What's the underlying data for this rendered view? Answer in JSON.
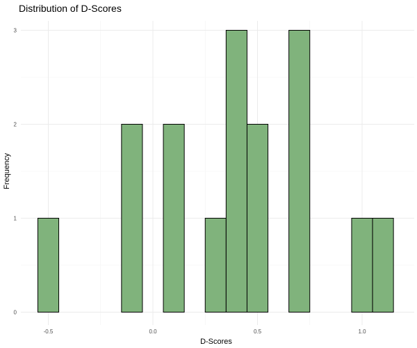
{
  "chart_data": {
    "type": "histogram",
    "title": "Distribution of D-Scores",
    "xlabel": "D-Scores",
    "ylabel": "Frequency",
    "xlim": [
      -0.6,
      1.2
    ],
    "ylim": [
      0,
      3
    ],
    "x_ticks": [
      -0.5,
      0.0,
      0.5,
      1.0
    ],
    "x_tick_labels": [
      "-0.5",
      "0.0",
      "0.5",
      "1.0"
    ],
    "y_ticks": [
      0,
      1,
      2,
      3
    ],
    "y_tick_labels": [
      "0",
      "1",
      "2",
      "3"
    ],
    "bin_width": 0.1,
    "bins": [
      {
        "center": -0.5,
        "count": 1
      },
      {
        "center": -0.4,
        "count": 0
      },
      {
        "center": -0.3,
        "count": 0
      },
      {
        "center": -0.2,
        "count": 0
      },
      {
        "center": -0.1,
        "count": 2
      },
      {
        "center": 0.0,
        "count": 0
      },
      {
        "center": 0.1,
        "count": 2
      },
      {
        "center": 0.2,
        "count": 0
      },
      {
        "center": 0.3,
        "count": 1
      },
      {
        "center": 0.4,
        "count": 3
      },
      {
        "center": 0.5,
        "count": 2
      },
      {
        "center": 0.6,
        "count": 0
      },
      {
        "center": 0.7,
        "count": 3
      },
      {
        "center": 0.8,
        "count": 0
      },
      {
        "center": 0.9,
        "count": 0
      },
      {
        "center": 1.0,
        "count": 1
      },
      {
        "center": 1.1,
        "count": 1
      }
    ],
    "bar_fill": "#80b37c",
    "bar_outline": "#000000",
    "grid": true,
    "theme": "minimal"
  }
}
